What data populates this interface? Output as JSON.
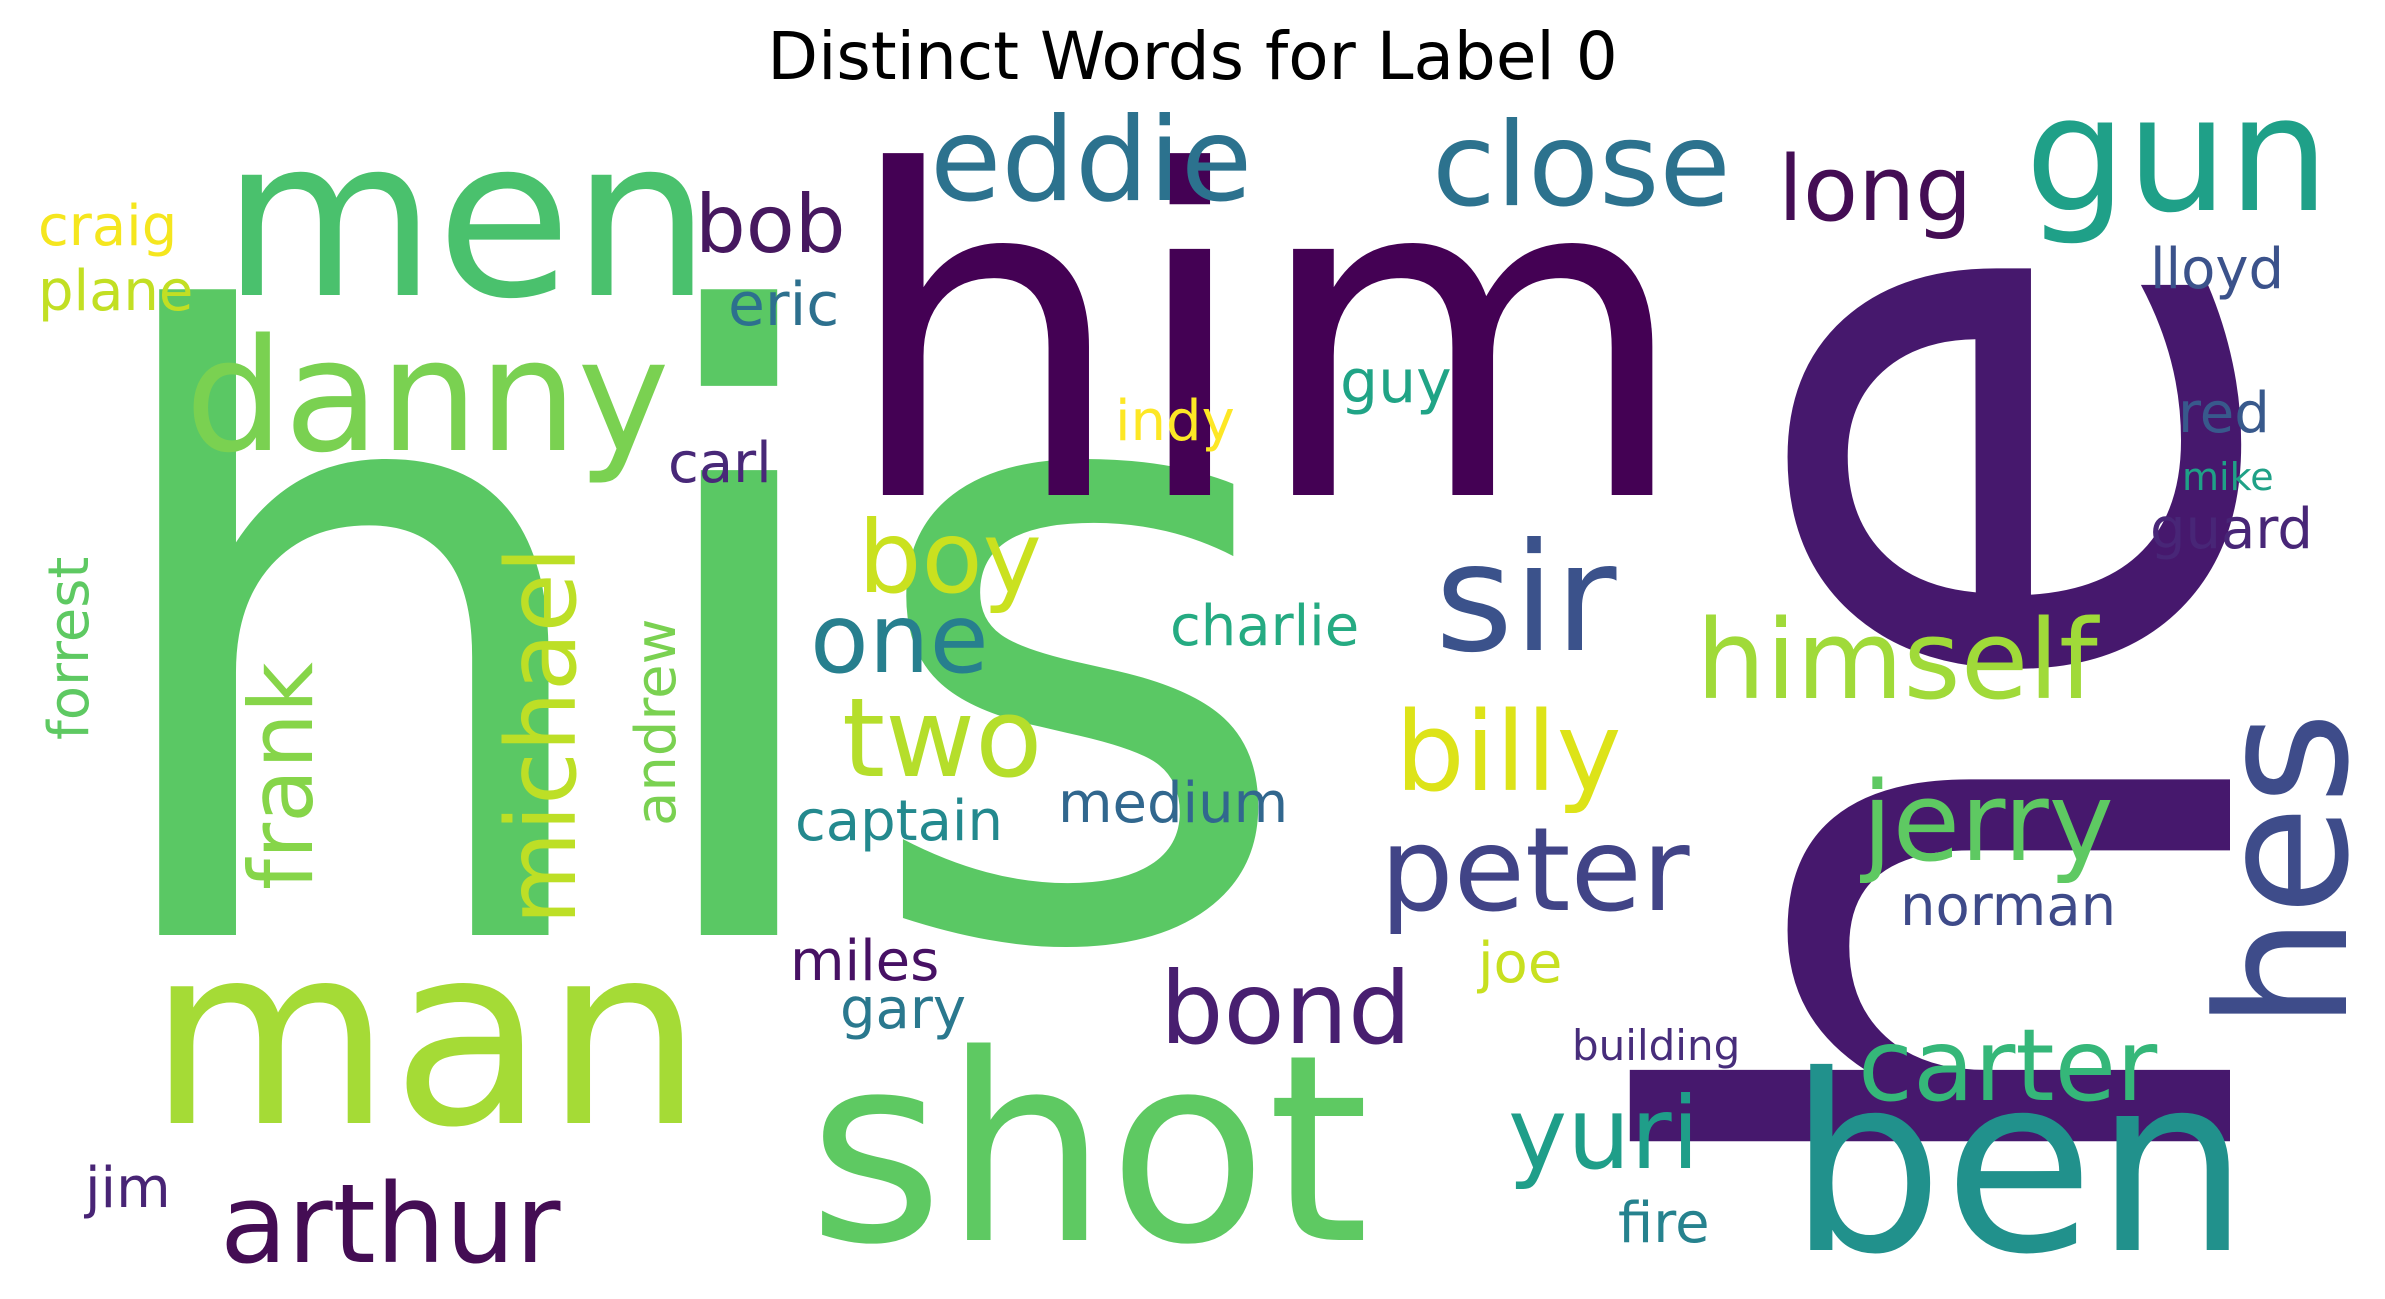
{
  "title": "Distinct Words for Label 0",
  "words": [
    {
      "text": "his",
      "color": "#5ac864"
    },
    {
      "text": "him",
      "color": "#440154"
    },
    {
      "text": "he",
      "color": "#46186d"
    },
    {
      "text": "men",
      "color": "#4ac16d"
    },
    {
      "text": "man",
      "color": "#a5db36"
    },
    {
      "text": "shot",
      "color": "#5ec962"
    },
    {
      "text": "danny",
      "color": "#7ad151"
    },
    {
      "text": "gun",
      "color": "#1fa088"
    },
    {
      "text": "eddie",
      "color": "#2c728e"
    },
    {
      "text": "close",
      "color": "#2c728e"
    },
    {
      "text": "ben",
      "color": "#21918c"
    },
    {
      "text": "hes",
      "color": "#3e4c8a"
    },
    {
      "text": "long",
      "color": "#440d54"
    },
    {
      "text": "sir",
      "color": "#3b528b"
    },
    {
      "text": "himself",
      "color": "#a0da39"
    },
    {
      "text": "billy",
      "color": "#dde318"
    },
    {
      "text": "peter",
      "color": "#414487"
    },
    {
      "text": "jerry",
      "color": "#5ec962"
    },
    {
      "text": "carter",
      "color": "#35b779"
    },
    {
      "text": "yuri",
      "color": "#1f9e89"
    },
    {
      "text": "bond",
      "color": "#481f70"
    },
    {
      "text": "two",
      "color": "#b5de2b"
    },
    {
      "text": "one",
      "color": "#277f8e"
    },
    {
      "text": "boy",
      "color": "#cae11f"
    },
    {
      "text": "bob",
      "color": "#46185f"
    },
    {
      "text": "arthur",
      "color": "#440d54"
    },
    {
      "text": "michael",
      "color": "#bddf26"
    },
    {
      "text": "frank",
      "color": "#86d549"
    },
    {
      "text": "andrew",
      "color": "#7ad151"
    },
    {
      "text": "forrest",
      "color": "#5ec962"
    },
    {
      "text": "craig",
      "color": "#f5e61e"
    },
    {
      "text": "plane",
      "color": "#c2df23"
    },
    {
      "text": "eric",
      "color": "#2d708e"
    },
    {
      "text": "carl",
      "color": "#482878"
    },
    {
      "text": "indy",
      "color": "#fde725"
    },
    {
      "text": "guy",
      "color": "#20a486"
    },
    {
      "text": "charlie",
      "color": "#25ab82"
    },
    {
      "text": "captain",
      "color": "#23898e"
    },
    {
      "text": "medium",
      "color": "#31678e"
    },
    {
      "text": "lloyd",
      "color": "#3b528b"
    },
    {
      "text": "red",
      "color": "#38598c"
    },
    {
      "text": "mike",
      "color": "#1fa187"
    },
    {
      "text": "guard",
      "color": "#482677"
    },
    {
      "text": "norman",
      "color": "#3e4a89"
    },
    {
      "text": "joe",
      "color": "#c8e020"
    },
    {
      "text": "building",
      "color": "#472d7b"
    },
    {
      "text": "miles",
      "color": "#471164"
    },
    {
      "text": "gary",
      "color": "#2a788e"
    },
    {
      "text": "fire",
      "color": "#26828e"
    },
    {
      "text": "jim",
      "color": "#482475"
    }
  ]
}
